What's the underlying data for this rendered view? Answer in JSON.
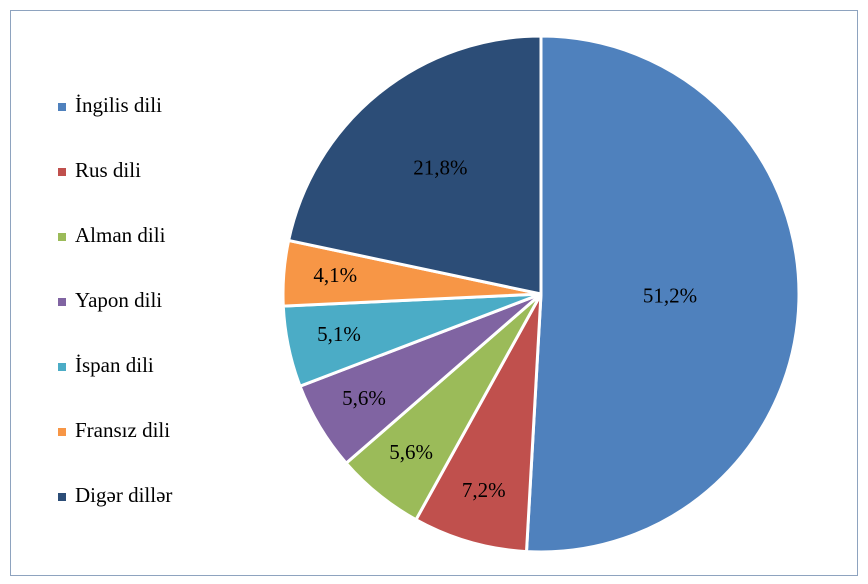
{
  "chart_data": {
    "type": "pie",
    "categories": [
      "İngilis dili",
      "Rus dili",
      "Alman dili",
      "Yapon dili",
      "İspan dili",
      "Fransız dili",
      "Digər dillər"
    ],
    "values": [
      51.2,
      7.2,
      5.6,
      5.6,
      5.1,
      4.1,
      21.8
    ],
    "value_labels": [
      "51,2%",
      "7,2%",
      "5,6%",
      "5,6%",
      "5,1%",
      "4,1%",
      "21,8%"
    ],
    "colors": [
      "#4f81bd",
      "#c0504d",
      "#9bbb59",
      "#8064a2",
      "#4bacc6",
      "#f79646",
      "#2c4d77"
    ],
    "legend": "left"
  }
}
